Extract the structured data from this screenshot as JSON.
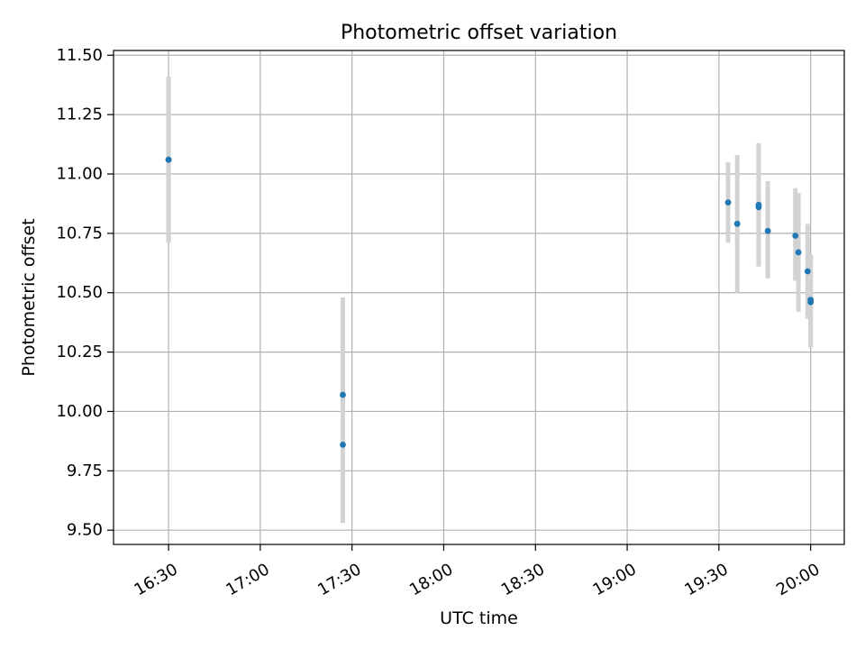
{
  "chart_data": {
    "type": "scatter",
    "title": "Photometric offset variation",
    "xlabel": "UTC time",
    "ylabel": "Photometric offset",
    "x_axis": {
      "kind": "time",
      "range": [
        "16:12",
        "20:11"
      ],
      "ticks": [
        "16:30",
        "17:00",
        "17:30",
        "18:00",
        "18:30",
        "19:00",
        "19:30",
        "20:00"
      ]
    },
    "y_axis": {
      "range": [
        9.44,
        11.52
      ],
      "ticks": [
        "9.50",
        "9.75",
        "10.00",
        "10.25",
        "10.50",
        "10.75",
        "11.00",
        "11.25",
        "11.50"
      ]
    },
    "grid": true,
    "series": [
      {
        "points": [
          {
            "time": "16:30",
            "y": 11.06,
            "err_low": 10.71,
            "err_high": 11.41
          },
          {
            "time": "16:30",
            "y": 11.06,
            "err_low": 10.72,
            "err_high": 11.41
          },
          {
            "time": "17:27",
            "y": 10.07,
            "err_low": 9.67,
            "err_high": 10.48
          },
          {
            "time": "17:27",
            "y": 9.86,
            "err_low": 9.53,
            "err_high": 10.19
          },
          {
            "time": "19:33",
            "y": 10.88,
            "err_low": 10.71,
            "err_high": 11.05
          },
          {
            "time": "19:36",
            "y": 10.79,
            "err_low": 10.5,
            "err_high": 11.08
          },
          {
            "time": "19:43",
            "y": 10.87,
            "err_low": 10.62,
            "err_high": 11.13
          },
          {
            "time": "19:43",
            "y": 10.86,
            "err_low": 10.61,
            "err_high": 11.12
          },
          {
            "time": "19:46",
            "y": 10.76,
            "err_low": 10.56,
            "err_high": 10.97
          },
          {
            "time": "19:55",
            "y": 10.74,
            "err_low": 10.55,
            "err_high": 10.94
          },
          {
            "time": "19:56",
            "y": 10.67,
            "err_low": 10.42,
            "err_high": 10.92
          },
          {
            "time": "19:59",
            "y": 10.59,
            "err_low": 10.39,
            "err_high": 10.79
          },
          {
            "time": "20:00",
            "y": 10.47,
            "err_low": 10.27,
            "err_high": 10.66
          },
          {
            "time": "20:00",
            "y": 10.46,
            "err_low": 10.27,
            "err_high": 10.66
          }
        ]
      }
    ],
    "colors": {
      "marker": "#1f77b4",
      "errorbar": "#d3d3d3",
      "grid": "#b0b0b0"
    }
  }
}
